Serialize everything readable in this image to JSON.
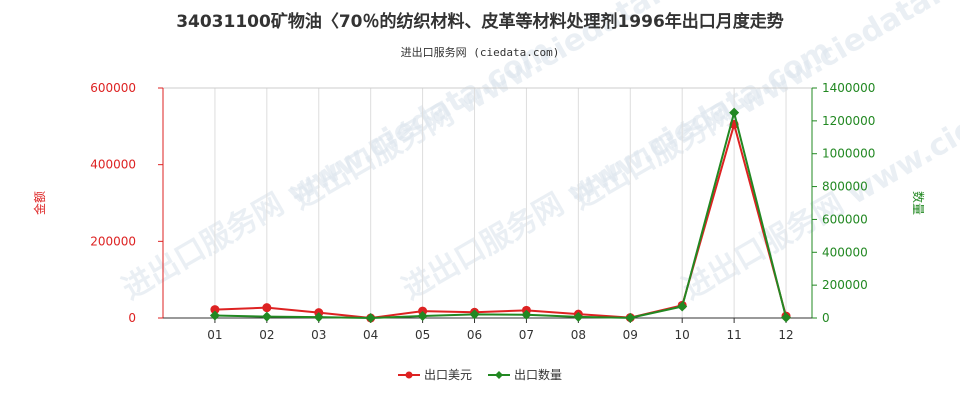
{
  "chart_data": {
    "type": "line",
    "title": "34031100矿物油〈70％的纺织材料、皮革等材料处理剂1996年出口月度走势",
    "subtitle": "进出口服务网 (ciedata.com)",
    "watermark": "进出口服务网 www.ciedata.com",
    "categories": [
      "01",
      "02",
      "03",
      "04",
      "05",
      "06",
      "07",
      "08",
      "09",
      "10",
      "11",
      "12"
    ],
    "y_left": {
      "label": "金额",
      "range": [
        0,
        600000
      ],
      "ticks": [
        0,
        200000,
        400000,
        600000
      ],
      "tick_labels": [
        "0",
        "200000",
        "400000",
        "600000"
      ],
      "color": "#dd2222"
    },
    "y_right": {
      "label": "数量",
      "range": [
        0,
        1400000
      ],
      "ticks": [
        0,
        200000,
        400000,
        600000,
        800000,
        1000000,
        1200000,
        1400000
      ],
      "tick_labels": [
        "0",
        "200000",
        "400000",
        "600000",
        "800000",
        "1000000",
        "1200000",
        "1400000"
      ],
      "color": "#228822"
    },
    "series": [
      {
        "name": "出口美元",
        "axis": "left",
        "color": "#dd2222",
        "marker": "circle",
        "values": [
          22000,
          27000,
          14000,
          0,
          18000,
          15000,
          20000,
          10000,
          1000,
          33000,
          505000,
          5000
        ]
      },
      {
        "name": "出口数量",
        "axis": "right",
        "color": "#228822",
        "marker": "diamond",
        "values": [
          15000,
          8000,
          5000,
          0,
          12000,
          22000,
          20000,
          7000,
          1000,
          70000,
          1250000,
          3000
        ]
      }
    ],
    "grid": "vertical",
    "legend": "bottom-center"
  }
}
